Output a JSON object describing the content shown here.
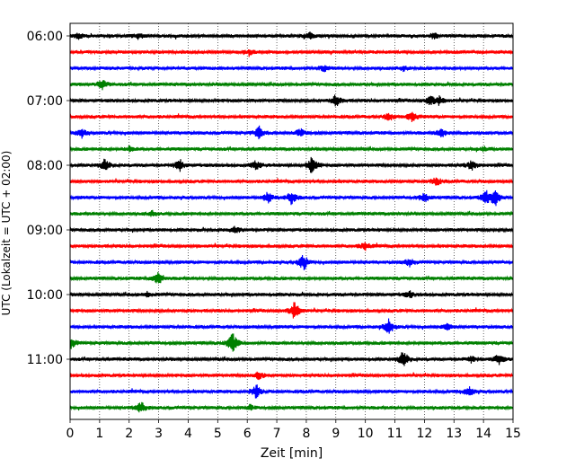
{
  "chart_data": {
    "type": "line",
    "xlabel": "Zeit  [min]",
    "ylabel": "UTC (Lokalzeit = UTC + 02:00)",
    "xlim": [
      0,
      15
    ],
    "x_ticks": [
      "0",
      "1",
      "2",
      "3",
      "4",
      "5",
      "6",
      "7",
      "8",
      "9",
      "10",
      "11",
      "12",
      "13",
      "14",
      "15"
    ],
    "y_ticks": [
      "06:00",
      "07:00",
      "08:00",
      "09:00",
      "10:00",
      "11:00"
    ],
    "y_tick_rows": [
      0,
      4,
      8,
      12,
      16,
      20
    ],
    "x_grid": "dotted",
    "rows": 24,
    "colors": [
      "#000000",
      "#ff0000",
      "#0000ff",
      "#008000"
    ],
    "events": [
      {
        "row": 0,
        "t": 0.3,
        "amp": 0.4
      },
      {
        "row": 0,
        "t": 2.3,
        "amp": 0.4
      },
      {
        "row": 0,
        "t": 8.1,
        "amp": 0.4
      },
      {
        "row": 0,
        "t": 12.3,
        "amp": 0.35
      },
      {
        "row": 1,
        "t": 6.1,
        "amp": 0.3
      },
      {
        "row": 2,
        "t": 8.6,
        "amp": 0.35
      },
      {
        "row": 2,
        "t": 11.3,
        "amp": 0.3
      },
      {
        "row": 3,
        "t": 1.1,
        "amp": 0.6
      },
      {
        "row": 4,
        "t": 9.0,
        "amp": 0.8
      },
      {
        "row": 4,
        "t": 12.2,
        "amp": 0.6
      },
      {
        "row": 4,
        "t": 12.5,
        "amp": 0.5
      },
      {
        "row": 5,
        "t": 10.8,
        "amp": 0.5
      },
      {
        "row": 5,
        "t": 11.6,
        "amp": 0.8
      },
      {
        "row": 6,
        "t": 0.4,
        "amp": 0.5
      },
      {
        "row": 6,
        "t": 6.4,
        "amp": 0.8
      },
      {
        "row": 6,
        "t": 7.8,
        "amp": 0.5
      },
      {
        "row": 6,
        "t": 12.6,
        "amp": 0.6
      },
      {
        "row": 7,
        "t": 2.0,
        "amp": 0.3
      },
      {
        "row": 7,
        "t": 14.0,
        "amp": 0.3
      },
      {
        "row": 8,
        "t": 1.2,
        "amp": 0.8
      },
      {
        "row": 8,
        "t": 3.7,
        "amp": 0.8
      },
      {
        "row": 8,
        "t": 6.3,
        "amp": 0.6
      },
      {
        "row": 8,
        "t": 8.2,
        "amp": 1.3
      },
      {
        "row": 8,
        "t": 13.6,
        "amp": 0.6
      },
      {
        "row": 9,
        "t": 12.4,
        "amp": 0.6
      },
      {
        "row": 10,
        "t": 6.7,
        "amp": 0.7
      },
      {
        "row": 10,
        "t": 7.5,
        "amp": 0.9
      },
      {
        "row": 10,
        "t": 12.0,
        "amp": 0.6
      },
      {
        "row": 10,
        "t": 14.1,
        "amp": 0.9
      },
      {
        "row": 10,
        "t": 14.4,
        "amp": 1.0
      },
      {
        "row": 11,
        "t": 2.8,
        "amp": 0.35
      },
      {
        "row": 12,
        "t": 5.6,
        "amp": 0.4
      },
      {
        "row": 13,
        "t": 10.0,
        "amp": 0.5
      },
      {
        "row": 14,
        "t": 7.9,
        "amp": 1.1
      },
      {
        "row": 14,
        "t": 11.5,
        "amp": 0.5
      },
      {
        "row": 15,
        "t": 3.0,
        "amp": 0.9
      },
      {
        "row": 16,
        "t": 11.5,
        "amp": 0.4
      },
      {
        "row": 16,
        "t": 2.6,
        "amp": 0.3
      },
      {
        "row": 17,
        "t": 7.6,
        "amp": 1.2
      },
      {
        "row": 18,
        "t": 10.8,
        "amp": 1.0
      },
      {
        "row": 18,
        "t": 12.8,
        "amp": 0.4
      },
      {
        "row": 19,
        "t": 5.5,
        "amp": 1.3
      },
      {
        "row": 19,
        "t": 0.05,
        "amp": 0.6
      },
      {
        "row": 20,
        "t": 11.3,
        "amp": 1.1
      },
      {
        "row": 20,
        "t": 14.5,
        "amp": 0.7
      },
      {
        "row": 20,
        "t": 13.6,
        "amp": 0.4
      },
      {
        "row": 21,
        "t": 6.4,
        "amp": 0.6
      },
      {
        "row": 22,
        "t": 6.3,
        "amp": 0.9
      },
      {
        "row": 22,
        "t": 13.5,
        "amp": 0.6
      },
      {
        "row": 23,
        "t": 2.4,
        "amp": 0.8
      },
      {
        "row": 23,
        "t": 6.1,
        "amp": 0.3
      }
    ]
  }
}
